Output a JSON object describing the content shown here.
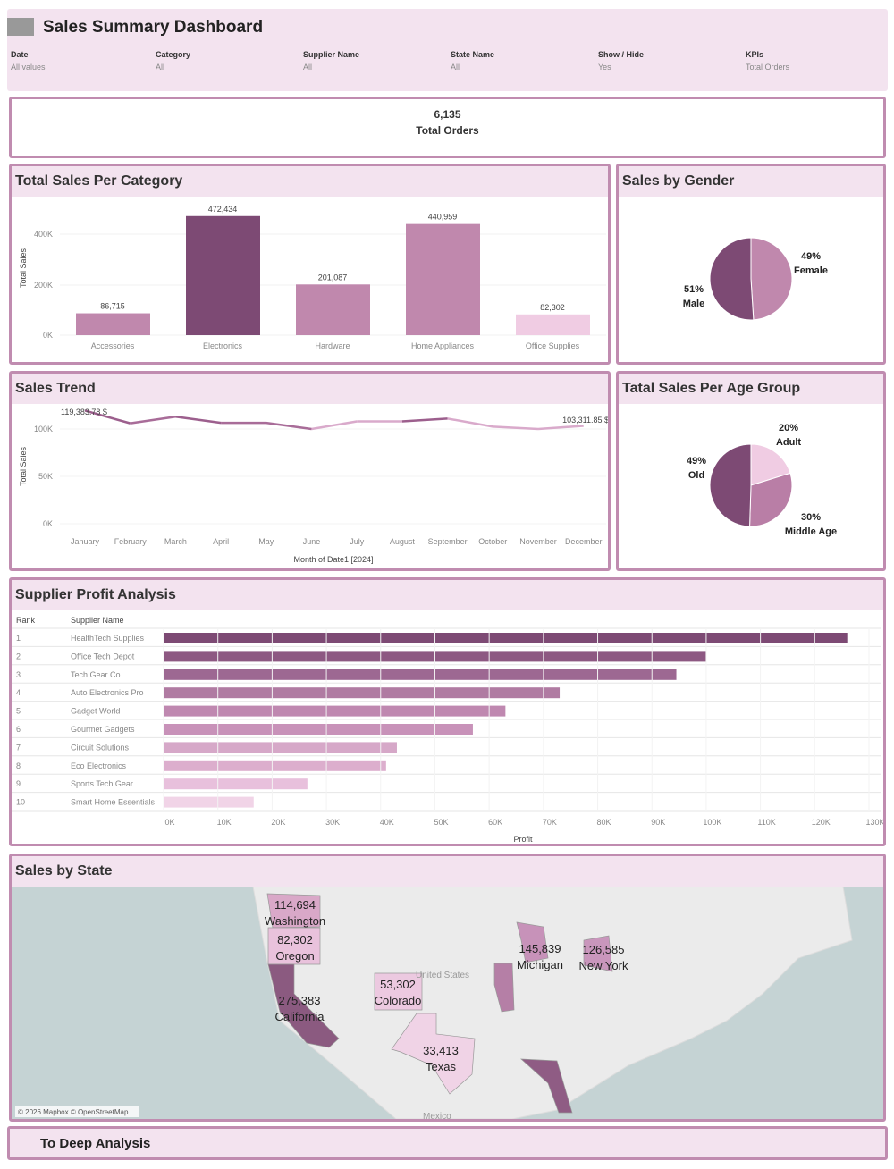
{
  "header": {
    "title": "Sales Summary Dashboard",
    "filters": [
      {
        "label": "Date",
        "value": "All values"
      },
      {
        "label": "Category",
        "value": "All"
      },
      {
        "label": "Supplier Name",
        "value": "All"
      },
      {
        "label": "State Name",
        "value": "All"
      },
      {
        "label": "Show / Hide",
        "value": "Yes"
      },
      {
        "label": "KPIs",
        "value": "Total Orders"
      }
    ]
  },
  "kpi": {
    "value": "6,135",
    "label": "Total Orders"
  },
  "colors": {
    "accent": "#c08cb0",
    "header_bg": "#f3e3ef",
    "dark": "#7d4a74",
    "mid": "#c088ad",
    "light": "#f0cce3"
  },
  "chart_data": [
    {
      "type": "bar",
      "title": "Total Sales  Per Category",
      "ylabel": "Total Sales",
      "ylim": [
        0,
        500000
      ],
      "yticks": [
        "0K",
        "200K",
        "400K"
      ],
      "categories": [
        "Accessories",
        "Electronics",
        "Hardware",
        "Home Appliances",
        "Office Supplies"
      ],
      "values": [
        86715,
        472434,
        201087,
        440959,
        82302
      ],
      "labels": [
        "86,715",
        "472,434",
        "201,087",
        "440,959",
        "82,302"
      ]
    },
    {
      "type": "pie",
      "title": "Sales by Gender",
      "slices": [
        {
          "name": "Female",
          "value": 49,
          "label": "49%"
        },
        {
          "name": "Male",
          "value": 51,
          "label": "51%"
        }
      ]
    },
    {
      "type": "line",
      "title": "Sales Trend",
      "ylabel": "Total Sales",
      "xlabel": "Month of Date1 [2024]",
      "ylim": [
        0,
        125000
      ],
      "yticks": [
        "0K",
        "50K",
        "100K"
      ],
      "categories": [
        "January",
        "February",
        "March",
        "April",
        "May",
        "June",
        "July",
        "August",
        "September",
        "October",
        "November",
        "December"
      ],
      "values": [
        119383.78,
        106000,
        113000,
        106500,
        106500,
        100000,
        108000,
        108000,
        111000,
        102500,
        100000,
        103311.85
      ],
      "annotations": [
        "119,383.78 $",
        "103,311.85 $"
      ]
    },
    {
      "type": "pie",
      "title": "Tatal Sales Per Age Group",
      "slices": [
        {
          "name": "Adult",
          "value": 20,
          "label": "20%"
        },
        {
          "name": "Middle Age",
          "value": 30,
          "label": "30%"
        },
        {
          "name": "Old",
          "value": 49,
          "label": "49%"
        }
      ]
    },
    {
      "type": "bar",
      "orientation": "horizontal",
      "title": "Supplier Profit Analysis",
      "xlabel": "Profit",
      "xlim": [
        0,
        130000
      ],
      "xticks": [
        "0K",
        "10K",
        "20K",
        "30K",
        "40K",
        "50K",
        "60K",
        "70K",
        "80K",
        "90K",
        "100K",
        "110K",
        "120K",
        "130K"
      ],
      "columns": [
        "Rank",
        "Supplier Name"
      ],
      "categories": [
        "HealthTech Supplies",
        "Office Tech Depot",
        "Tech Gear Co.",
        "Auto Electronics Pro",
        "Gadget World",
        "Gourmet Gadgets",
        "Circuit Solutions",
        "Eco Electronics",
        "Sports Tech Gear",
        "Smart Home Essentials"
      ],
      "ranks": [
        "1",
        "2",
        "3",
        "4",
        "5",
        "6",
        "7",
        "8",
        "9",
        "10"
      ],
      "values": [
        126000,
        100000,
        94500,
        73000,
        63000,
        57000,
        43000,
        41000,
        26500,
        16600
      ]
    }
  ],
  "map": {
    "title": "Sales by State",
    "attribution": "© 2026 Mapbox © OpenStreetMap",
    "country_label": "United States",
    "mexico_label": "Mexico",
    "states": [
      {
        "name": "Washington",
        "value": "114,694"
      },
      {
        "name": "Oregon",
        "value": "82,302"
      },
      {
        "name": "California",
        "value": "275,383"
      },
      {
        "name": "Colorado",
        "value": "53,302"
      },
      {
        "name": "Texas",
        "value": "33,413"
      },
      {
        "name": "Michigan",
        "value": "145,839"
      },
      {
        "name": "New York",
        "value": "126,585"
      }
    ]
  },
  "footer": {
    "label": "To Deep Analysis"
  }
}
